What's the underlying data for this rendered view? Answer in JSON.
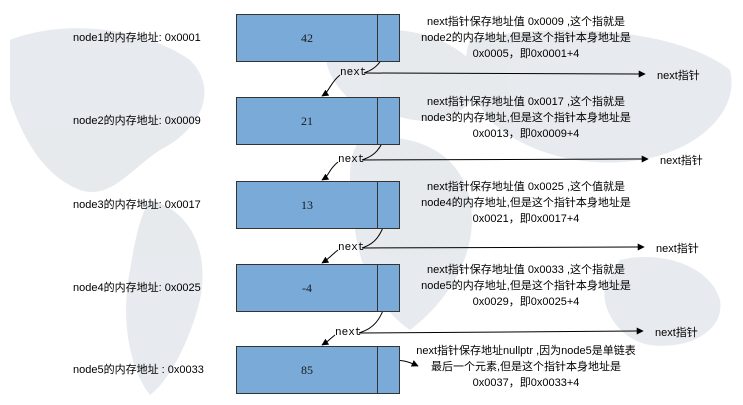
{
  "nodes": [
    {
      "address_label": "node1的内存地址: 0x0001",
      "value": "42",
      "desc": [
        "next指针保存地址值 0x0009 ,这个指就是",
        "node2的内存地址,但是这个指针本身地址是",
        "0x0005，即0x0001+4"
      ],
      "next_label": "next",
      "next_ptr_label": "next指针"
    },
    {
      "address_label": "node2的内存地址: 0x0009",
      "value": "21",
      "desc": [
        "next指针保存地址值 0x0017 ,这个指就是",
        "node3的内存地址,但是这个指针本身地址是",
        "0x0013，即0x0009+4"
      ],
      "next_label": "next",
      "next_ptr_label": "next指针"
    },
    {
      "address_label": "node3的内存地址: 0x0017",
      "value": "13",
      "desc": [
        "next指针保存地址值 0x0025 ,这个值就是",
        "node4的内存地址,但是这个指针本身地址是",
        "0x0021，即0x0017+4"
      ],
      "next_label": "next",
      "next_ptr_label": "next指针"
    },
    {
      "address_label": "node4的内存地址: 0x0025",
      "value": "-4",
      "desc": [
        "next指针保存地址值 0x0033 ,这个指就是",
        "node5的内存地址,但是这个指针本身地址是",
        "0x0029，即0x0025+4"
      ],
      "next_label": "next",
      "next_ptr_label": "next指针"
    },
    {
      "address_label": "node5的内存地址 : 0x0033",
      "value": "85",
      "desc": [
        "next指针保存地址nullptr ,因为node5是单链表",
        "最后一个元素,但是这个指针本身地址是",
        "0x0037，即0x0033+4"
      ]
    }
  ],
  "colors": {
    "node_fill": "#7aaad8",
    "node_border": "#333333",
    "background_map": "#e4e8ec",
    "arrow": "#000000"
  }
}
